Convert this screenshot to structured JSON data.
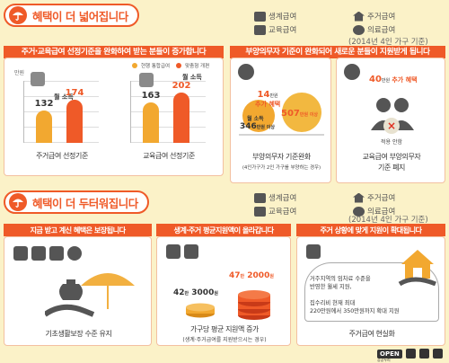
{
  "sec1": {
    "title": "혜택이 더 넓어집니다",
    "banner": "주거·교육급여 선정기준을 완화하여 받는 분들이 증가합니다",
    "right_banner": "부양의무자 기준이 완화되어 새로운 분들이 지원받게 됩니다",
    "year": "(2014년 4인 가구 기준)",
    "legend": {
      "livelihood": "생계급여",
      "housing": "주거급여",
      "education": "교육급여",
      "medical": "의료급여"
    },
    "chart_legend": {
      "current": "현행 통합급여",
      "custom": "맞춤형 개편"
    },
    "yunit": "만원",
    "monthly_income": "월 소득",
    "cap_housing": "주거급여 선정기준",
    "cap_education": "교육급여 선정기준",
    "support_caption": "부양의무자 기준완화",
    "support_sub": "(4인가구가 2인 가구를 부양하는 경우)",
    "support": {
      "benefit_num": "14",
      "benefit_unit": "만원",
      "benefit_label": "추가 혜택",
      "old_label": "월 소득",
      "old_value": "346",
      "old_suffix": "만원 이상",
      "new_value": "507",
      "new_suffix": "만원 이상"
    },
    "edu_support": {
      "num": "40",
      "unit": "만원",
      "label": "추가 혜택",
      "not_applied": "적용 안함",
      "caption_line1": "교육급여 부양의무자",
      "caption_line2": "기준 폐지"
    }
  },
  "chart_data": [
    {
      "type": "bar",
      "title": "주거급여 선정기준",
      "categories": [
        "현행 통합급여",
        "맞춤형 개편"
      ],
      "values": [
        132,
        174
      ],
      "ylabel": "만원"
    },
    {
      "type": "bar",
      "title": "교육급여 선정기준",
      "categories": [
        "현행 통합급여",
        "맞춤형 개편"
      ],
      "values": [
        163,
        202
      ],
      "ylabel": "만원"
    }
  ],
  "sec2": {
    "title": "혜택이 더 두터워집니다",
    "year": "(2014년 4인 가구 기준)",
    "legend": {
      "livelihood": "생계급여",
      "housing": "주거급여",
      "education": "교육급여",
      "medical": "의료급여"
    },
    "banner_left": "지금 받고 계신 혜택은 보장됩니다",
    "banner_mid": "생계·주거 평균지원액이 올라갑니다",
    "banner_right": "주거 상황에 맞게 지원이 확대됩니다",
    "cap_left": "기초생활보장 수준 유지",
    "cap_mid": "가구당 평균 지원액 증가",
    "cap_mid_sub": "(생계·주거급여를 지원받으시는 경우)",
    "amount_old_a": "42",
    "amount_old_b": "3000",
    "amount_new_a": "47",
    "amount_new_b": "2000",
    "unit_man": "만",
    "unit_won": "원",
    "housing_text": [
      "거주지역의 임차료 수준을",
      "반영한 월세 지원,",
      "",
      "집수리비 현재 최대",
      "220만원에서 350만원까지 확대 지원"
    ],
    "cap_right": "주거급여 현실화"
  },
  "footer": {
    "open": "OPEN",
    "open_sub": "공공누리"
  }
}
